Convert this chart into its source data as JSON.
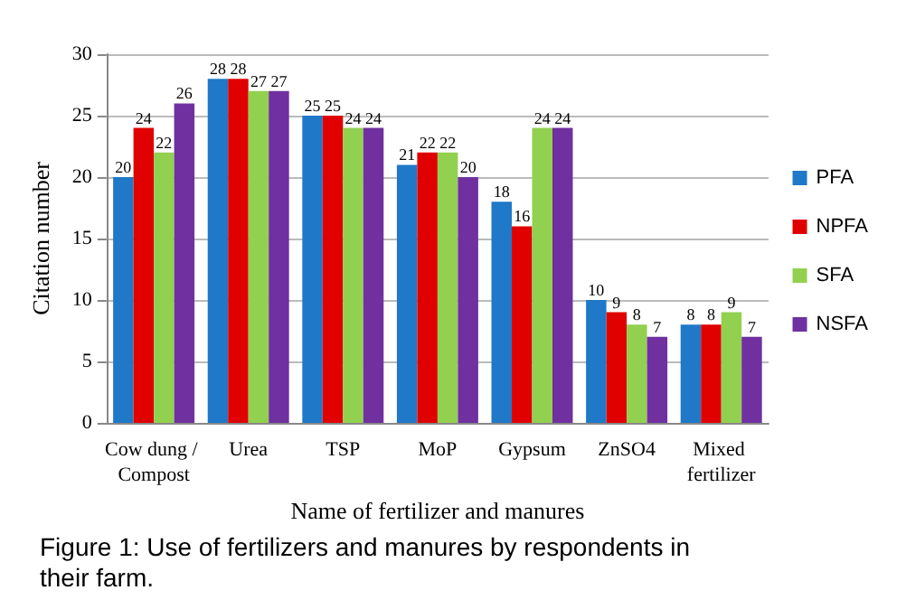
{
  "chart_data": {
    "type": "bar",
    "xlabel": "Name of fertilizer and manures",
    "ylabel": "Citation number",
    "categories": [
      "Cow dung / Compost",
      "Urea",
      "TSP",
      "MoP",
      "Gypsum",
      "ZnSO4",
      "Mixed fertilizer"
    ],
    "series": [
      {
        "name": "PFA",
        "color": "#1f78c8",
        "values": [
          20,
          28,
          25,
          21,
          18,
          10,
          8
        ]
      },
      {
        "name": "NPFA",
        "color": "#e00000",
        "values": [
          24,
          28,
          25,
          22,
          16,
          9,
          8
        ]
      },
      {
        "name": "SFA",
        "color": "#92d050",
        "values": [
          22,
          27,
          24,
          22,
          24,
          8,
          9
        ]
      },
      {
        "name": "NSFA",
        "color": "#7030a0",
        "values": [
          26,
          27,
          24,
          20,
          24,
          7,
          7
        ]
      }
    ],
    "ylim": [
      0,
      30
    ],
    "yticks": [
      0,
      5,
      10,
      15,
      20,
      25,
      30
    ],
    "grid": "y",
    "legend": "right",
    "data_labels": true,
    "annotations": [
      "Figure 1: Use of fertilizers and manures by respondents in their farm."
    ]
  }
}
